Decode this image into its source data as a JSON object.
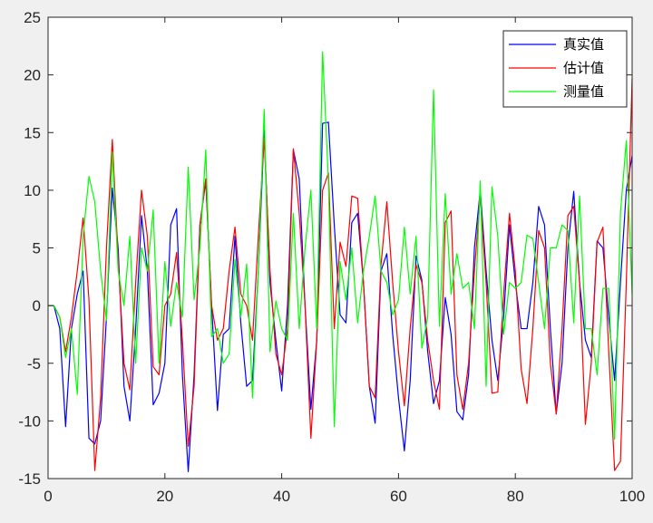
{
  "chart_data": {
    "type": "line",
    "title": "",
    "xlabel": "",
    "ylabel": "",
    "xlim": [
      0,
      100
    ],
    "ylim": [
      -15,
      25
    ],
    "xticks": [
      0,
      20,
      40,
      60,
      80,
      100
    ],
    "yticks": [
      -15,
      -10,
      -5,
      0,
      5,
      10,
      15,
      20,
      25
    ],
    "grid": false,
    "legend_position": "top-right",
    "x": [
      0,
      1,
      2,
      3,
      4,
      5,
      6,
      7,
      8,
      9,
      10,
      11,
      12,
      13,
      14,
      15,
      16,
      17,
      18,
      19,
      20,
      21,
      22,
      23,
      24,
      25,
      26,
      27,
      28,
      29,
      30,
      31,
      32,
      33,
      34,
      35,
      36,
      37,
      38,
      39,
      40,
      41,
      42,
      43,
      44,
      45,
      46,
      47,
      48,
      49,
      50,
      51,
      52,
      53,
      54,
      55,
      56,
      57,
      58,
      59,
      60,
      61,
      62,
      63,
      64,
      65,
      66,
      67,
      68,
      69,
      70,
      71,
      72,
      73,
      74,
      75,
      76,
      77,
      78,
      79,
      80,
      81,
      82,
      83,
      84,
      85,
      86,
      87,
      88,
      89,
      90,
      91,
      92,
      93,
      94,
      95,
      96,
      97,
      98,
      99,
      100
    ],
    "series": [
      {
        "name": "真实值",
        "color": "#0000ff",
        "values": [
          0,
          0,
          -2,
          -10.5,
          -2,
          1,
          3,
          -11.5,
          -12,
          -10,
          -1,
          10.2,
          5,
          -7,
          -10,
          -2,
          7.8,
          3,
          -8.6,
          -7.6,
          -5,
          7,
          8.4,
          -6,
          -14.4,
          -6,
          7,
          10.8,
          0,
          -9.1,
          -2.5,
          -2,
          6,
          -1.5,
          -7,
          -6.5,
          3,
          15.2,
          2,
          -3,
          -7.4,
          0,
          13.5,
          11,
          0,
          -9,
          -3,
          15.8,
          15.9,
          7,
          -0.8,
          -1.5,
          7.2,
          8,
          2,
          -7,
          -10.2,
          3,
          4.5,
          -2.5,
          -8,
          -12.6,
          -6.5,
          4.3,
          2.2,
          -4,
          -8.5,
          -6.5,
          0.7,
          -2.5,
          -9.2,
          -9.9,
          -6,
          5,
          10,
          3,
          -3,
          -6.5,
          -1,
          7,
          2,
          -2,
          -2,
          2,
          8.6,
          7,
          -2,
          -9.4,
          -5,
          5,
          9.9,
          2,
          -3,
          -4.5,
          5.6,
          5,
          -1,
          -6.5,
          2,
          10,
          13
        ]
      },
      {
        "name": "估计值",
        "color": "#ff0000",
        "values": [
          0,
          0,
          -1,
          -4,
          -1,
          3,
          7.6,
          0.5,
          -14.3,
          -8,
          5,
          14.4,
          4,
          -5,
          -7.3,
          2,
          10,
          6,
          -5.3,
          -6,
          0,
          1,
          4.6,
          -3,
          -12.2,
          -7,
          7,
          11,
          0,
          -3,
          -2,
          3,
          6.8,
          1,
          0,
          -3,
          6,
          14.5,
          3,
          -4.2,
          -6,
          -2,
          13.6,
          8,
          0,
          -11.5,
          -3,
          10,
          11.5,
          -2,
          5.5,
          3.4,
          9.5,
          9.3,
          2,
          -7,
          -8,
          3.5,
          9,
          2,
          -4,
          -8.7,
          -2,
          3.5,
          2,
          -3,
          -6.5,
          -9,
          7.2,
          8.2,
          -6,
          -9,
          -5,
          3,
          9.5,
          2,
          -7.6,
          -7.5,
          1,
          8,
          3,
          -5.5,
          -8.5,
          -2,
          6.5,
          5,
          -5,
          -9.4,
          -2,
          7.8,
          8.6,
          2,
          -10.3,
          -5,
          5.5,
          6.8,
          -4,
          -14.3,
          -13.5,
          2,
          19.7
        ]
      },
      {
        "name": "测量值",
        "color": "#00ff00",
        "values": [
          0,
          0,
          -1,
          -4.5,
          -2,
          -7.7,
          6,
          11.2,
          9,
          3,
          -1.3,
          13.3,
          3,
          0,
          6,
          -5,
          5,
          3,
          8.3,
          -5,
          3.8,
          -1.8,
          2,
          -1,
          12,
          0.5,
          5,
          13.5,
          -2.7,
          -2,
          -5,
          -4.2,
          4,
          -1,
          3.6,
          -8,
          3,
          17,
          -4,
          0.4,
          -2,
          -3,
          8,
          -2,
          5,
          10,
          -2,
          22,
          10.8,
          -10.5,
          3.8,
          0.5,
          5,
          -1.5,
          3,
          6,
          9.5,
          3,
          2,
          -0.8,
          0.5,
          6.8,
          1,
          6,
          -3.7,
          -1,
          18.7,
          -1.8,
          9.7,
          1,
          4.5,
          1.5,
          2,
          -2,
          10.8,
          -7,
          10.3,
          6,
          -2.5,
          2,
          1.5,
          2,
          6.1,
          5.8,
          2,
          -2,
          5,
          5,
          7,
          6.5,
          -1.5,
          9.5,
          -2,
          -2,
          -6,
          1.5,
          1.5,
          -11.6,
          8,
          14.3,
          1
        ]
      }
    ]
  }
}
